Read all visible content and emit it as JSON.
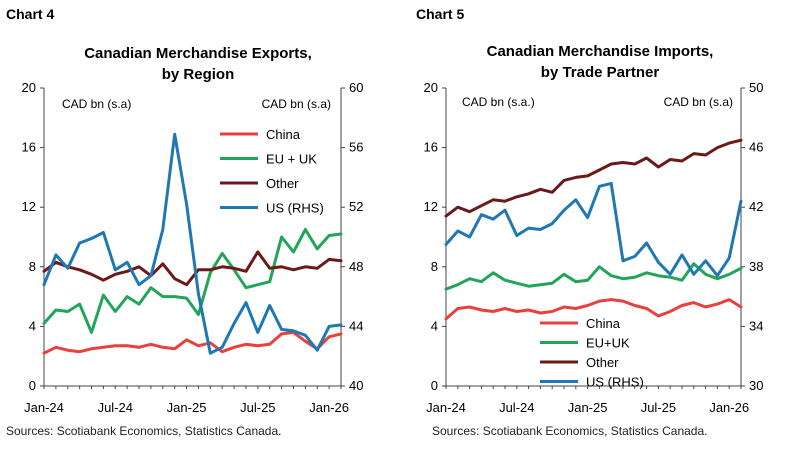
{
  "chart_data": [
    {
      "type": "line",
      "chart_label": "Chart 4",
      "title": "Canadian Merchandise Exports, by Region",
      "title_lines": [
        "Canadian Merchandise Exports,",
        "by Region"
      ],
      "ylabel_left": "CAD bn (s.a)",
      "ylabel_right": "CAD bn (s.a)",
      "ylim_left": [
        0,
        20
      ],
      "ylim_right": [
        40,
        60
      ],
      "yticks_left": [
        "0",
        "4",
        "8",
        "12",
        "16",
        "20"
      ],
      "yticks_right": [
        "40",
        "44",
        "48",
        "52",
        "56",
        "60"
      ],
      "x": [
        "2024-01",
        "2024-02",
        "2024-03",
        "2024-04",
        "2024-05",
        "2024-06",
        "2024-07",
        "2024-08",
        "2024-09",
        "2024-10",
        "2024-11",
        "2024-12",
        "2025-01",
        "2025-02",
        "2025-03",
        "2025-04",
        "2025-05",
        "2025-06",
        "2025-07",
        "2025-08",
        "2025-09",
        "2025-10",
        "2025-11",
        "2025-12",
        "2026-01",
        "2026-02"
      ],
      "xtick_labels": [
        "Jan-24",
        "Jul-24",
        "Jan-25",
        "Jul-25",
        "Jan-26"
      ],
      "legend_position": "top-right",
      "source": "Sources: Scotiabank Economics, Statistics Canada.",
      "series": [
        {
          "name": "China",
          "axis": "left",
          "color": "#e8403a",
          "values": [
            2.2,
            2.6,
            2.4,
            2.3,
            2.5,
            2.6,
            2.7,
            2.7,
            2.6,
            2.8,
            2.6,
            2.5,
            3.1,
            2.7,
            2.9,
            2.3,
            2.6,
            2.8,
            2.7,
            2.8,
            3.5,
            3.6,
            3.0,
            2.5,
            3.3,
            3.5
          ]
        },
        {
          "name": "EU + UK",
          "axis": "left",
          "color": "#22a55a",
          "values": [
            4.2,
            5.1,
            5.0,
            5.5,
            3.6,
            6.1,
            5.0,
            6.0,
            5.5,
            6.6,
            6.0,
            6.0,
            5.9,
            4.8,
            7.6,
            8.9,
            7.8,
            6.6,
            6.8,
            7.0,
            10.0,
            9.0,
            10.5,
            9.2,
            10.1,
            10.2
          ]
        },
        {
          "name": "Other",
          "axis": "left",
          "color": "#6b1a1a",
          "values": [
            7.7,
            8.3,
            8.0,
            7.8,
            7.5,
            7.1,
            7.5,
            7.7,
            8.0,
            7.4,
            8.2,
            7.2,
            6.8,
            7.8,
            7.8,
            8.0,
            7.9,
            7.7,
            9.0,
            7.9,
            8.0,
            7.8,
            8.0,
            7.9,
            8.5,
            8.4
          ]
        },
        {
          "name": "US (RHS)",
          "axis": "right",
          "color": "#1f78b4",
          "values": [
            46.8,
            48.8,
            47.9,
            49.6,
            49.9,
            50.3,
            47.8,
            48.3,
            46.8,
            47.4,
            50.5,
            56.9,
            52.2,
            46.2,
            42.2,
            42.6,
            44.2,
            45.6,
            43.6,
            45.4,
            43.8,
            43.7,
            43.4,
            42.4,
            44.0,
            44.1
          ]
        }
      ]
    },
    {
      "type": "line",
      "chart_label": "Chart 5",
      "title": "Canadian Merchandise Imports, by Trade Partner",
      "title_lines": [
        "Canadian Merchandise Imports,",
        "by Trade Partner"
      ],
      "ylabel_left": "CAD bn (s.a.)",
      "ylabel_right": "CAD bn (s.a)",
      "ylim_left": [
        0,
        20
      ],
      "ylim_right": [
        30,
        50
      ],
      "yticks_left": [
        "0",
        "4",
        "8",
        "12",
        "16",
        "20"
      ],
      "yticks_right": [
        "30",
        "34",
        "38",
        "42",
        "46",
        "50"
      ],
      "x": [
        "2024-01",
        "2024-02",
        "2024-03",
        "2024-04",
        "2024-05",
        "2024-06",
        "2024-07",
        "2024-08",
        "2024-09",
        "2024-10",
        "2024-11",
        "2024-12",
        "2025-01",
        "2025-02",
        "2025-03",
        "2025-04",
        "2025-05",
        "2025-06",
        "2025-07",
        "2025-08",
        "2025-09",
        "2025-10",
        "2025-11",
        "2025-12",
        "2026-01",
        "2026-02"
      ],
      "xtick_labels": [
        "Jan-24",
        "Jul-24",
        "Jan-25",
        "Jul-25",
        "Jan-26"
      ],
      "legend_position": "bottom-left",
      "source": "Sources: Scotiabank Economics, Statistics Canada.",
      "series": [
        {
          "name": "China",
          "axis": "left",
          "color": "#e8403a",
          "values": [
            4.5,
            5.2,
            5.3,
            5.1,
            5.0,
            5.2,
            5.0,
            5.1,
            4.9,
            5.0,
            5.3,
            5.2,
            5.4,
            5.7,
            5.8,
            5.7,
            5.4,
            5.2,
            4.7,
            5.0,
            5.4,
            5.6,
            5.3,
            5.5,
            5.8,
            5.3
          ]
        },
        {
          "name": "EU+UK",
          "axis": "left",
          "color": "#22a55a",
          "values": [
            6.5,
            6.8,
            7.2,
            7.0,
            7.6,
            7.1,
            6.9,
            6.7,
            6.8,
            6.9,
            7.5,
            7.0,
            7.1,
            8.0,
            7.4,
            7.2,
            7.3,
            7.6,
            7.4,
            7.3,
            7.1,
            8.2,
            7.5,
            7.2,
            7.5,
            7.9
          ]
        },
        {
          "name": "Other",
          "axis": "left",
          "color": "#6b1a1a",
          "values": [
            11.4,
            12.0,
            11.7,
            12.1,
            12.5,
            12.4,
            12.7,
            12.9,
            13.2,
            13.0,
            13.8,
            14.0,
            14.1,
            14.5,
            14.9,
            15.0,
            14.9,
            15.3,
            14.7,
            15.2,
            15.1,
            15.6,
            15.5,
            16.0,
            16.3,
            16.5
          ]
        },
        {
          "name": "US (RHS)",
          "axis": "right",
          "color": "#1f78b4",
          "values": [
            39.5,
            40.4,
            40.0,
            41.5,
            41.2,
            41.8,
            40.1,
            40.6,
            40.5,
            40.9,
            41.8,
            42.5,
            41.3,
            43.4,
            43.6,
            38.4,
            38.7,
            39.6,
            38.3,
            37.5,
            38.8,
            37.5,
            38.4,
            37.4,
            38.6,
            42.4
          ]
        }
      ]
    }
  ]
}
